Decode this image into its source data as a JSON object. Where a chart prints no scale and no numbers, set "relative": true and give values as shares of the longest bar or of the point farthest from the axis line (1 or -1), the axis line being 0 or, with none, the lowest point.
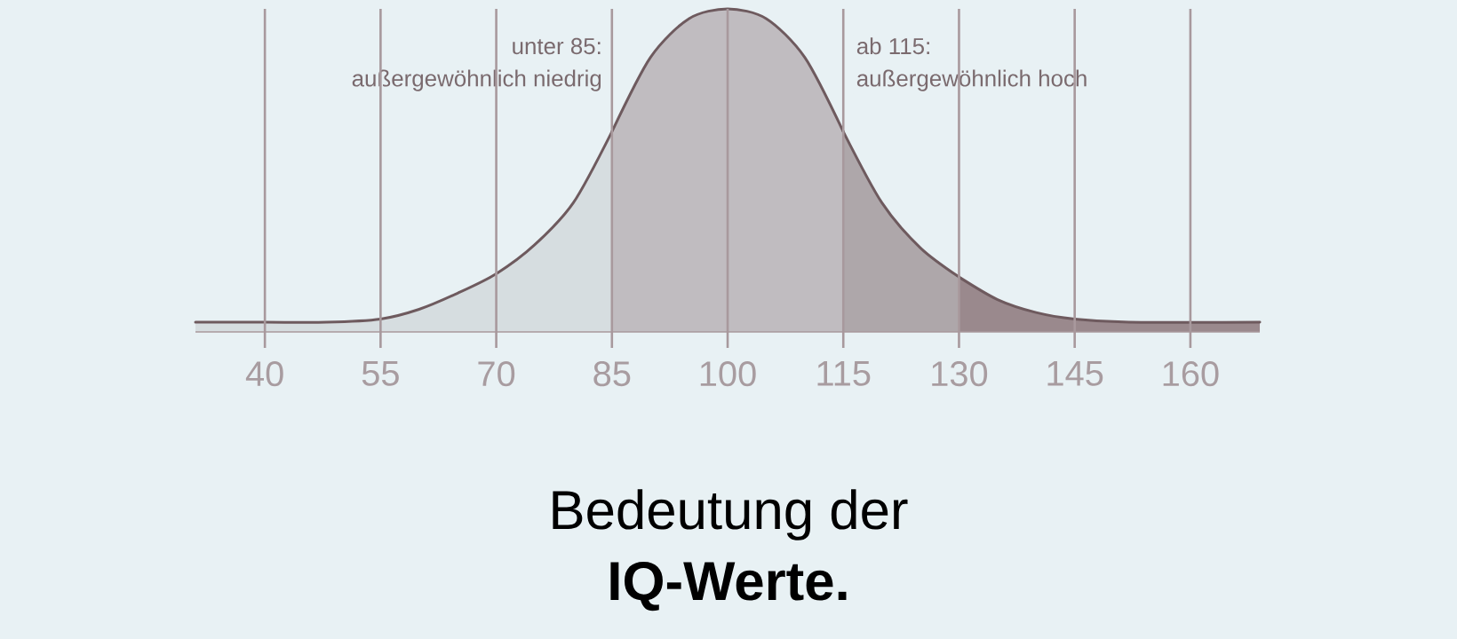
{
  "chart_data": {
    "type": "area",
    "relative": true,
    "title": "Bedeutung der",
    "subtitle": "IQ-Werte.",
    "xlim": [
      31,
      169
    ],
    "xticks": [
      40,
      55,
      70,
      85,
      100,
      115,
      130,
      145,
      160
    ],
    "grid": "x",
    "tick_labels": "x",
    "series": [
      {
        "color": "#d6dde0",
        "x": [
          31,
          40,
          48,
          55,
          60,
          65,
          70,
          75,
          80,
          85
        ],
        "values": [
          0.03,
          0.03,
          0.03,
          0.04,
          0.07,
          0.12,
          0.18,
          0.27,
          0.4,
          0.62
        ]
      },
      {
        "color": "#c0bcc0",
        "x": [
          85,
          90,
          95,
          100,
          105,
          110,
          115
        ],
        "values": [
          0.62,
          0.85,
          0.97,
          1,
          0.97,
          0.85,
          0.62
        ]
      },
      {
        "color": "#aea7aa",
        "x": [
          115,
          120,
          125,
          130
        ],
        "values": [
          0.62,
          0.4,
          0.26,
          0.17
        ]
      },
      {
        "color": "#9a898d",
        "x": [
          130,
          135,
          140,
          145,
          152,
          169
        ],
        "values": [
          0.17,
          0.1,
          0.06,
          0.04,
          0.03,
          0.03
        ]
      }
    ],
    "annotations": [
      "unter 85:",
      "außergewöhnlich niedrig",
      "ab 115:",
      "außergewöhnlich hoch"
    ]
  }
}
